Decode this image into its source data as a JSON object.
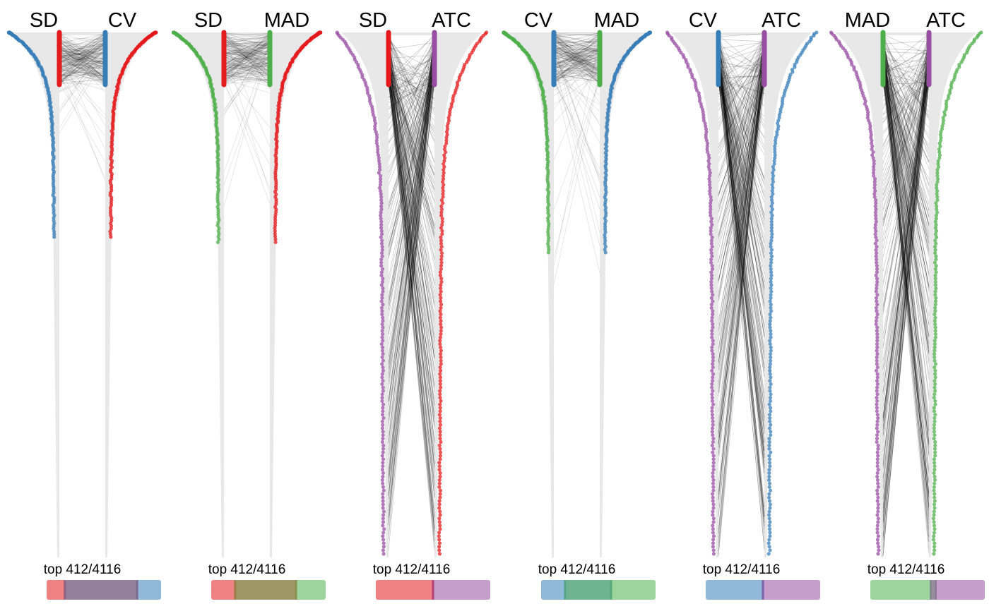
{
  "colors": {
    "SD": "#e41a1c",
    "CV": "#377eb8",
    "MAD": "#4daf4a",
    "ATC": "#984ea3",
    "band": "#e8e8e8",
    "links": "#000000"
  },
  "chart_data": [
    {
      "type": "parallel-rank",
      "left_method": "SD",
      "right_method": "CV",
      "caption": "top 412/4116",
      "left_dots_color": "CV",
      "right_dots_color": "SD",
      "left_bar_color": "SD",
      "right_bar_color": "CV",
      "link_spread": 0.18,
      "overlap": {
        "left_only": 0.15,
        "shared": 0.65,
        "right_only": 0.2
      }
    },
    {
      "type": "parallel-rank",
      "left_method": "SD",
      "right_method": "MAD",
      "caption": "top 412/4116",
      "left_dots_color": "MAD",
      "right_dots_color": "SD",
      "left_bar_color": "SD",
      "right_bar_color": "MAD",
      "link_spread": 0.22,
      "overlap": {
        "left_only": 0.2,
        "shared": 0.55,
        "right_only": 0.25
      }
    },
    {
      "type": "parallel-rank",
      "left_method": "SD",
      "right_method": "ATC",
      "caption": "top 412/4116",
      "left_dots_color": "ATC",
      "right_dots_color": "SD",
      "left_bar_color": "SD",
      "right_bar_color": "ATC",
      "link_spread": 1.0,
      "overlap": {
        "left_only": 0.49,
        "shared": 0.02,
        "right_only": 0.49
      }
    },
    {
      "type": "parallel-rank",
      "left_method": "CV",
      "right_method": "MAD",
      "caption": "top 412/4116",
      "left_dots_color": "MAD",
      "right_dots_color": "CV",
      "left_bar_color": "CV",
      "right_bar_color": "MAD",
      "link_spread": 0.3,
      "overlap": {
        "left_only": 0.2,
        "shared": 0.42,
        "right_only": 0.38
      }
    },
    {
      "type": "parallel-rank",
      "left_method": "CV",
      "right_method": "ATC",
      "caption": "top 412/4116",
      "left_dots_color": "ATC",
      "right_dots_color": "CV",
      "left_bar_color": "CV",
      "right_bar_color": "ATC",
      "link_spread": 1.0,
      "overlap": {
        "left_only": 0.49,
        "shared": 0.02,
        "right_only": 0.49
      }
    },
    {
      "type": "parallel-rank",
      "left_method": "MAD",
      "right_method": "ATC",
      "caption": "top 412/4116",
      "left_dots_color": "ATC",
      "right_dots_color": "MAD",
      "left_bar_color": "MAD",
      "right_bar_color": "ATC",
      "link_spread": 1.0,
      "overlap": {
        "left_only": 0.52,
        "shared": 0.06,
        "right_only": 0.42
      }
    }
  ]
}
